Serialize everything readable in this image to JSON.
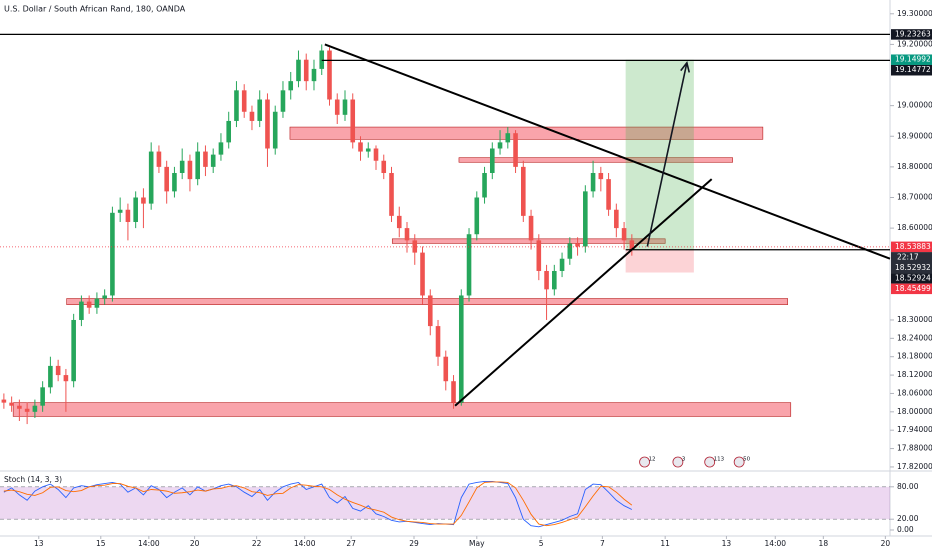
{
  "chart_data": [
    {
      "type": "candlestick",
      "title": "U.S. Dollar / South African Rand, 180, OANDA",
      "xlim": [
        -0.5,
        114.3
      ],
      "ylim": [
        17.81,
        19.345
      ],
      "yticks": [
        {
          "value": 19.3,
          "label": "19.30000"
        },
        {
          "value": 19.2,
          "label": "19.20000"
        },
        {
          "value": 19.0,
          "label": "19.00000"
        },
        {
          "value": 18.9,
          "label": "18.90000"
        },
        {
          "value": 18.8,
          "label": "18.80000"
        },
        {
          "value": 18.7,
          "label": "18.70000"
        },
        {
          "value": 18.6,
          "label": "18.60000"
        },
        {
          "value": 18.3,
          "label": "18.30000"
        },
        {
          "value": 18.24,
          "label": "18.24000"
        },
        {
          "value": 18.18,
          "label": "18.18000"
        },
        {
          "value": 18.12,
          "label": "18.12000"
        },
        {
          "value": 18.06,
          "label": "18.06000"
        },
        {
          "value": 18.0,
          "label": "18.00000"
        },
        {
          "value": 17.94,
          "label": "17.94000"
        },
        {
          "value": 17.88,
          "label": "17.88000"
        },
        {
          "value": 17.82,
          "label": "17.82000"
        }
      ],
      "xticks": [
        {
          "value": 4.5,
          "label": "13"
        },
        {
          "value": 12.5,
          "label": "15"
        },
        {
          "value": 18.7,
          "label": "14:00"
        },
        {
          "value": 24.6,
          "label": "20"
        },
        {
          "value": 32.6,
          "label": "22"
        },
        {
          "value": 38.8,
          "label": "14:00"
        },
        {
          "value": 44.8,
          "label": "27"
        },
        {
          "value": 52.9,
          "label": "29"
        },
        {
          "value": 61,
          "label": "May"
        },
        {
          "value": 69.3,
          "label": "5"
        },
        {
          "value": 77.2,
          "label": "7"
        },
        {
          "value": 85.3,
          "label": "11"
        },
        {
          "value": 93.2,
          "label": "13"
        },
        {
          "value": 99.5,
          "label": "14:00"
        },
        {
          "value": 105.7,
          "label": "18"
        },
        {
          "value": 113.7,
          "label": "20"
        }
      ],
      "up_color": "#26a65b",
      "down_color": "#ef5350",
      "open": [
        18.04,
        18.03,
        18.02,
        18.01,
        18.0,
        18.02,
        18.08,
        18.15,
        18.12,
        18.1,
        18.3,
        18.36,
        18.34,
        18.37,
        18.38,
        18.65,
        18.66,
        18.62,
        18.7,
        18.68,
        18.85,
        18.8,
        18.72,
        18.78,
        18.82,
        18.76,
        18.85,
        18.8,
        18.84,
        18.88,
        18.95,
        19.05,
        18.98,
        18.95,
        19.02,
        18.86,
        18.98,
        19.05,
        19.08,
        19.15,
        19.08,
        19.12,
        19.18,
        19.02,
        18.97,
        19.02,
        18.88,
        18.85,
        18.86,
        18.82,
        18.78,
        18.64,
        18.6,
        18.56,
        18.52,
        18.38,
        18.28,
        18.18,
        18.1,
        18.03,
        18.38,
        18.58,
        18.7,
        18.78,
        18.86,
        18.88,
        18.91,
        18.8,
        18.64,
        18.56,
        18.46,
        18.4,
        18.46,
        18.5,
        18.55,
        18.54,
        18.72,
        18.78,
        18.76,
        18.66,
        18.6,
        18.56
      ],
      "high": [
        18.06,
        18.05,
        18.04,
        18.03,
        18.04,
        18.1,
        18.18,
        18.17,
        18.14,
        18.32,
        18.38,
        18.38,
        18.39,
        18.4,
        18.67,
        18.7,
        18.68,
        18.72,
        18.73,
        18.88,
        18.87,
        18.82,
        18.8,
        18.86,
        18.84,
        18.88,
        18.87,
        18.86,
        18.91,
        18.98,
        19.08,
        19.07,
        19.0,
        19.05,
        19.04,
        19.0,
        19.08,
        19.11,
        19.18,
        19.17,
        19.15,
        19.2,
        19.19,
        19.04,
        19.05,
        19.04,
        18.9,
        18.88,
        18.87,
        18.84,
        18.8,
        18.67,
        18.62,
        18.58,
        18.54,
        18.4,
        18.3,
        18.2,
        18.12,
        18.4,
        18.6,
        18.72,
        18.8,
        18.88,
        18.92,
        18.93,
        18.92,
        18.82,
        18.66,
        18.58,
        18.48,
        18.48,
        18.52,
        18.57,
        18.57,
        18.74,
        18.82,
        18.8,
        18.78,
        18.68,
        18.62,
        18.58
      ],
      "low": [
        18.01,
        18.0,
        17.97,
        17.96,
        17.98,
        18.0,
        18.06,
        18.1,
        18.0,
        18.08,
        18.28,
        18.32,
        18.32,
        18.35,
        18.36,
        18.62,
        18.56,
        18.6,
        18.6,
        18.66,
        18.78,
        18.68,
        18.7,
        18.76,
        18.72,
        18.74,
        18.77,
        18.78,
        18.82,
        18.86,
        18.93,
        18.96,
        18.92,
        18.93,
        18.8,
        18.84,
        18.96,
        19.02,
        19.06,
        19.05,
        19.05,
        19.1,
        19.0,
        18.94,
        18.95,
        18.86,
        18.82,
        18.83,
        18.79,
        18.76,
        18.62,
        18.57,
        18.52,
        18.48,
        18.35,
        18.25,
        18.15,
        18.07,
        18.01,
        18.02,
        18.36,
        18.56,
        18.68,
        18.76,
        18.84,
        18.86,
        18.78,
        18.62,
        18.53,
        18.43,
        18.3,
        18.38,
        18.44,
        18.48,
        18.51,
        18.52,
        18.7,
        18.72,
        18.64,
        18.57,
        18.53,
        18.51
      ],
      "close": [
        18.03,
        18.02,
        18.01,
        18.0,
        18.02,
        18.08,
        18.15,
        18.12,
        18.1,
        18.3,
        18.36,
        18.34,
        18.37,
        18.38,
        18.65,
        18.66,
        18.62,
        18.7,
        18.68,
        18.85,
        18.8,
        18.72,
        18.78,
        18.82,
        18.76,
        18.85,
        18.8,
        18.84,
        18.88,
        18.95,
        19.05,
        18.98,
        18.95,
        19.02,
        18.86,
        18.98,
        19.05,
        19.08,
        19.15,
        19.08,
        19.12,
        19.18,
        19.02,
        18.97,
        19.02,
        18.88,
        18.85,
        18.86,
        18.82,
        18.78,
        18.64,
        18.6,
        18.56,
        18.52,
        18.38,
        18.28,
        18.18,
        18.1,
        18.03,
        18.38,
        18.58,
        18.7,
        18.78,
        18.86,
        18.88,
        18.91,
        18.8,
        18.64,
        18.56,
        18.46,
        18.4,
        18.46,
        18.5,
        18.55,
        18.54,
        18.72,
        18.78,
        18.76,
        18.66,
        18.6,
        18.56,
        18.53
      ],
      "zones": [
        {
          "top": 18.93,
          "bottom": 18.89,
          "x": [
            36.9,
            97.9
          ]
        },
        {
          "top": 18.83,
          "bottom": 18.815,
          "x": [
            58.7,
            94.0
          ]
        },
        {
          "top": 18.565,
          "bottom": 18.55,
          "x": [
            50.1,
            85.3
          ]
        },
        {
          "top": 18.37,
          "bottom": 18.35,
          "x": [
            8.1,
            101.1
          ]
        },
        {
          "top": 18.03,
          "bottom": 17.985,
          "x": [
            1.2,
            101.5
          ]
        }
      ],
      "position": {
        "x": [
          80.2,
          89.0
        ],
        "target": 19.14992,
        "entry": 18.52924,
        "stop": 18.45499
      },
      "hlines": [
        {
          "value": 19.23263
        },
        {
          "value": 19.14772,
          "x0": 41.0
        },
        {
          "value": 18.52924,
          "x0": 80.2
        }
      ],
      "trendlines": [
        {
          "x": [
            41.4,
            114.3
          ],
          "y": [
            19.2,
            18.5
          ]
        },
        {
          "x": [
            58.2,
            91.3
          ],
          "y": [
            18.02,
            18.76
          ]
        }
      ],
      "arrow": {
        "x": [
          83.0,
          88.1
        ],
        "y": [
          18.54,
          19.14
        ]
      },
      "price_labels": [
        {
          "value": 19.23263,
          "color": "#131722"
        },
        {
          "value": 19.14992,
          "color": "#089981"
        },
        {
          "value": 19.14772,
          "color": "#131722"
        },
        {
          "value": 18.53883,
          "color": "#f23645",
          "dotted_line": true
        },
        {
          "value": 18.52932,
          "color": "#2a2e39",
          "countdown": "22:17"
        },
        {
          "value": 18.52924,
          "color": "#131722"
        },
        {
          "value": 18.45499,
          "color": "#f23645"
        }
      ],
      "events": [
        {
          "x": 82.9,
          "label": "12"
        },
        {
          "x": 87.2,
          "label": "3"
        },
        {
          "x": 91.3,
          "label": "113"
        },
        {
          "x": 95.1,
          "label": "50"
        }
      ]
    },
    {
      "type": "stoch",
      "title": "Stoch (14, 3, 3)",
      "ylim": [
        0,
        100
      ],
      "yticks": [
        {
          "value": 80,
          "label": "80.00"
        },
        {
          "value": 20,
          "label": "20.00"
        },
        {
          "value": 0,
          "label": "0.00"
        }
      ],
      "band": [
        20,
        80
      ],
      "series": [
        {
          "color": "#2962ff",
          "values": [
            70,
            78,
            65,
            55,
            72,
            80,
            85,
            75,
            60,
            78,
            82,
            80,
            84,
            86,
            88,
            85,
            70,
            78,
            65,
            82,
            75,
            60,
            70,
            78,
            65,
            80,
            72,
            76,
            82,
            85,
            80,
            70,
            62,
            75,
            55,
            70,
            80,
            85,
            88,
            75,
            80,
            85,
            60,
            50,
            62,
            40,
            35,
            45,
            30,
            25,
            18,
            15,
            16,
            14,
            12,
            10,
            12,
            11,
            10,
            60,
            85,
            88,
            90,
            90,
            88,
            86,
            60,
            20,
            8,
            6,
            10,
            14,
            18,
            25,
            30,
            75,
            85,
            84,
            70,
            55,
            45,
            38
          ]
        },
        {
          "color": "#ff6d00",
          "values": [
            72,
            74,
            71,
            66,
            64,
            69,
            79,
            80,
            73,
            71,
            73,
            80,
            82,
            83,
            86,
            86,
            81,
            78,
            71,
            75,
            74,
            72,
            68,
            69,
            71,
            74,
            72,
            76,
            77,
            81,
            82,
            78,
            71,
            69,
            64,
            67,
            68,
            78,
            84,
            83,
            81,
            80,
            75,
            65,
            57,
            51,
            46,
            40,
            37,
            33,
            24,
            19,
            16,
            15,
            14,
            12,
            11,
            11,
            11,
            27,
            52,
            78,
            88,
            89,
            89,
            88,
            78,
            55,
            29,
            11,
            8,
            10,
            14,
            19,
            24,
            43,
            63,
            81,
            80,
            70,
            57,
            46
          ]
        }
      ]
    }
  ]
}
